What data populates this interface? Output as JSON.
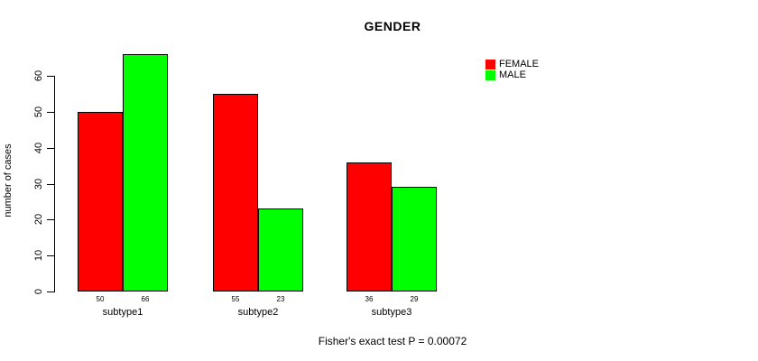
{
  "chart_data": {
    "type": "bar",
    "title": "GENDER",
    "categories": [
      "subtype1",
      "subtype2",
      "subtype3"
    ],
    "series": [
      {
        "name": "FEMALE",
        "color": "#ff0000",
        "values": [
          50,
          55,
          36
        ]
      },
      {
        "name": "MALE",
        "color": "#00ff00",
        "values": [
          66,
          23,
          29
        ]
      }
    ],
    "bar_value_labels": [
      [
        50,
        66
      ],
      [
        55,
        23
      ],
      [
        36,
        29
      ]
    ],
    "xlabel": "",
    "ylabel": "number of cases",
    "yticks": [
      0,
      10,
      20,
      30,
      40,
      50,
      60
    ],
    "ylim": [
      0,
      66
    ],
    "grid": false,
    "legend_position": "top-right",
    "annotation": "Fisher's exact test P = 0.00072"
  }
}
